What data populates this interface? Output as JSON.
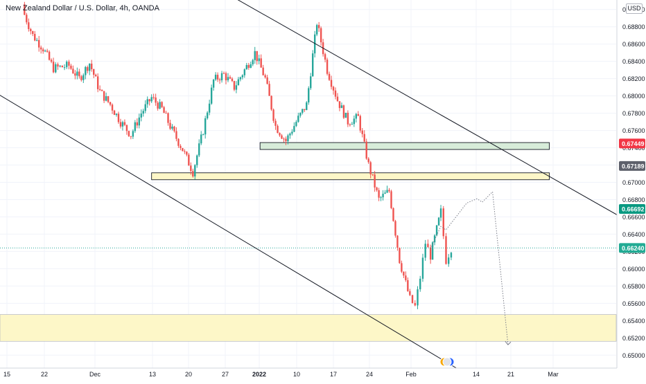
{
  "chart_title": "New Zealand Dollar / U.S. Dollar, 4h, OANDA",
  "currency_label": "USD",
  "colors": {
    "up": "#26a69a",
    "down": "#ef5350",
    "price_line": "#26a69a",
    "zone_green": "#d7ecd9",
    "zone_yellow": "#fdf7c8",
    "tag_red": "#f23645",
    "tag_gray": "#5d606b",
    "tag_green": "#089981",
    "tag_teal": "#22ab94"
  },
  "chart_data": {
    "type": "line",
    "title": "New Zealand Dollar / U.S. Dollar, 4h, OANDA",
    "ylim": [
      0.6485,
      0.6911
    ],
    "y_ticks": [
      "0.69200",
      "0.69000",
      "0.68800",
      "0.68600",
      "0.68400",
      "0.68200",
      "0.68000",
      "0.67800",
      "0.67600",
      "0.67400",
      "0.67200",
      "0.67000",
      "0.66800",
      "0.66600",
      "0.66400",
      "0.66200",
      "0.66000",
      "0.65800",
      "0.65600",
      "0.65400",
      "0.65200",
      "0.65000"
    ],
    "x_ticks": [
      "15",
      "22",
      "Dec",
      "13",
      "20",
      "27",
      "2022",
      "10",
      "17",
      "24",
      "Feb",
      "14",
      "21",
      "Mar"
    ],
    "x_tick_bold": [
      "2022"
    ],
    "price_tags": [
      {
        "label": "0.67449",
        "value": 0.67449,
        "color_key": "tag_red"
      },
      {
        "label": "0.67189",
        "value": 0.67189,
        "color_key": "tag_gray"
      },
      {
        "label": "0.66692",
        "value": 0.66692,
        "color_key": "tag_green"
      },
      {
        "label": "0.66240",
        "value": 0.6624,
        "color_key": "tag_teal"
      }
    ],
    "zones": [
      {
        "name": "resistance-green",
        "y_low": 0.6738,
        "y_high": 0.6746,
        "color_key": "zone_green",
        "x_start": "2022-01-03",
        "x_end": "2022-02-28"
      },
      {
        "name": "resistance-yellow",
        "y_low": 0.6703,
        "y_high": 0.6711,
        "color_key": "zone_yellow",
        "x_start": "2021-12-13",
        "x_end": "2022-02-28"
      },
      {
        "name": "support-yellow",
        "y_low": 0.6516,
        "y_high": 0.6547,
        "color_key": "zone_yellow",
        "x_start": "2021-11-08",
        "x_end": "2022-03-20"
      }
    ],
    "trendlines": [
      {
        "name": "channel-lower",
        "points": [
          [
            "2021-11-08",
            0.6821
          ],
          [
            "2022-02-10",
            0.6485
          ]
        ]
      },
      {
        "name": "channel-upper",
        "points": [
          [
            "2021-12-28",
            0.6917
          ],
          [
            "2022-03-20",
            0.6639
          ]
        ]
      }
    ],
    "projection": {
      "points": [
        [
          "2022-02-05",
          0.6623
        ],
        [
          "2022-02-07",
          0.6649
        ],
        [
          "2022-02-08",
          0.6645
        ],
        [
          "2022-02-12",
          0.6676
        ],
        [
          "2022-02-14",
          0.6681
        ],
        [
          "2022-02-15",
          0.6677
        ],
        [
          "2022-02-17",
          0.6689
        ],
        [
          "2022-02-20",
          0.6512
        ]
      ]
    },
    "series": [
      {
        "values": [
          [
            "2021-11-18",
            0.69
          ],
          [
            "2021-11-20",
            0.687
          ],
          [
            "2021-11-22",
            0.6855
          ],
          [
            "2021-11-24",
            0.6832
          ],
          [
            "2021-11-27",
            0.6835
          ],
          [
            "2021-11-29",
            0.682
          ],
          [
            "2021-12-01",
            0.6838
          ],
          [
            "2021-12-03",
            0.6805
          ],
          [
            "2021-12-05",
            0.679
          ],
          [
            "2021-12-07",
            0.677
          ],
          [
            "2021-12-09",
            0.6755
          ],
          [
            "2021-12-11",
            0.678
          ],
          [
            "2021-12-13",
            0.6798
          ],
          [
            "2021-12-15",
            0.6785
          ],
          [
            "2021-12-17",
            0.676
          ],
          [
            "2021-12-19",
            0.6738
          ],
          [
            "2021-12-21",
            0.6712
          ],
          [
            "2021-12-23",
            0.676
          ],
          [
            "2021-12-25",
            0.6818
          ],
          [
            "2021-12-27",
            0.6825
          ],
          [
            "2021-12-29",
            0.681
          ],
          [
            "2021-12-31",
            0.683
          ],
          [
            "2022-01-02",
            0.685
          ],
          [
            "2022-01-04",
            0.682
          ],
          [
            "2022-01-06",
            0.6765
          ],
          [
            "2022-01-08",
            0.6748
          ],
          [
            "2022-01-10",
            0.677
          ],
          [
            "2022-01-12",
            0.679
          ],
          [
            "2022-01-14",
            0.6885
          ],
          [
            "2022-01-16",
            0.683
          ],
          [
            "2022-01-18",
            0.6795
          ],
          [
            "2022-01-20",
            0.677
          ],
          [
            "2022-01-22",
            0.6775
          ],
          [
            "2022-01-24",
            0.672
          ],
          [
            "2022-01-26",
            0.668
          ],
          [
            "2022-01-28",
            0.669
          ],
          [
            "2022-01-30",
            0.661
          ],
          [
            "2022-02-01",
            0.6565
          ],
          [
            "2022-02-02",
            0.6556
          ],
          [
            "2022-02-03",
            0.659
          ],
          [
            "2022-02-04",
            0.663
          ],
          [
            "2022-02-05",
            0.6615
          ],
          [
            "2022-02-07",
            0.6666
          ],
          [
            "2022-02-08",
            0.661
          ],
          [
            "2022-02-09",
            0.6624
          ]
        ]
      }
    ]
  }
}
